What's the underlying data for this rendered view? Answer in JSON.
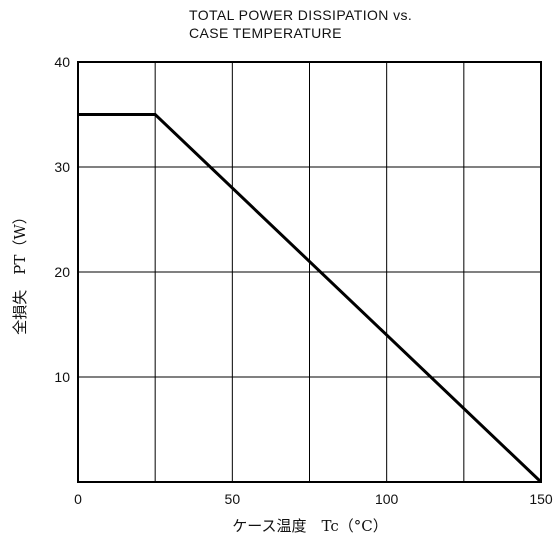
{
  "chart_data": {
    "type": "line",
    "title_line1": "TOTAL POWER DISSIPATION vs.",
    "title_line2": "CASE TEMPERATURE",
    "xlabel": "ケース温度　Tc（°C）",
    "ylabel": "全損失　PT（W）",
    "xlim": [
      0,
      150
    ],
    "ylim": [
      0,
      40
    ],
    "x_ticks": [
      0,
      50,
      100,
      150
    ],
    "y_ticks": [
      10,
      20,
      30,
      40
    ],
    "grid": true,
    "series": [
      {
        "x": [
          0,
          25,
          150
        ],
        "y": [
          35,
          35,
          0
        ]
      }
    ],
    "line_color": "#000000"
  }
}
